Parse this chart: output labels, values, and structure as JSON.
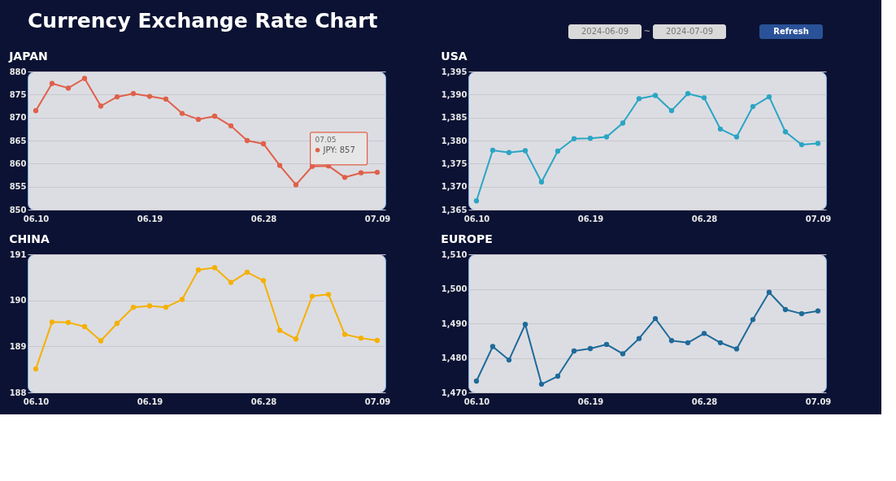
{
  "chart_data": [
    {
      "type": "other",
      "title": "Currency Exchange Rate Chart",
      "annotations": [
        "2024-06-09",
        "~",
        "2024-07-09",
        "Refresh"
      ]
    },
    {
      "type": "line",
      "title": "JAPAN",
      "categories": [
        "06.10",
        null,
        null,
        null,
        null,
        null,
        null,
        "06.19",
        null,
        null,
        null,
        null,
        null,
        null,
        "06.28",
        null,
        null,
        null,
        null,
        null,
        null,
        "07.09"
      ],
      "color": "#e0604a",
      "marker": "circle",
      "grid": "y",
      "values": [
        871.5,
        877.4,
        876.4,
        878.5,
        872.5,
        874.5,
        875.2,
        874.6,
        874.0,
        870.9,
        869.6,
        870.3,
        868.2,
        865.0,
        864.3,
        859.6,
        855.4,
        859.4,
        859.5,
        857,
        858.0,
        858.1
      ],
      "ylim": [
        850,
        880
      ],
      "yticks": [
        850,
        855,
        860,
        865,
        870,
        875,
        880
      ],
      "annotations": [
        "07.05",
        "JPY: 857"
      ]
    },
    {
      "type": "line",
      "title": "USA",
      "categories": [
        "06.10",
        null,
        null,
        null,
        null,
        null,
        null,
        "06.19",
        null,
        null,
        null,
        null,
        null,
        null,
        "06.28",
        null,
        null,
        null,
        null,
        null,
        null,
        "07.09"
      ],
      "color": "#2ba5c4",
      "marker": "circle",
      "grid": "y",
      "values": [
        1366.9,
        1377.9,
        1377.4,
        1377.8,
        1371.0,
        1377.7,
        1380.4,
        1380.5,
        1380.8,
        1383.8,
        1389.1,
        1389.8,
        1386.5,
        1390.2,
        1389.3,
        1382.5,
        1380.8,
        1387.4,
        1389.5,
        1381.9,
        1379.1,
        1379.4
      ],
      "ylim": [
        1365,
        1395
      ],
      "yticks": [
        {
          "value": 1365,
          "label": "1,365"
        },
        {
          "value": 1370,
          "label": "1,370"
        },
        {
          "value": 1375,
          "label": "1,375"
        },
        {
          "value": 1380,
          "label": "1,380"
        },
        {
          "value": 1385,
          "label": "1,385"
        },
        {
          "value": 1390,
          "label": "1,390"
        },
        {
          "value": 1395,
          "label": "1,395"
        }
      ]
    },
    {
      "type": "line",
      "title": "CHINA",
      "categories": [
        "06.10",
        null,
        null,
        null,
        null,
        null,
        null,
        "06.19",
        null,
        null,
        null,
        null,
        null,
        null,
        "06.28",
        null,
        null,
        null,
        null,
        null,
        null,
        "07.09"
      ],
      "color": "#f5b000",
      "marker": "circle",
      "grid": "y",
      "values": [
        188.51,
        189.53,
        189.52,
        189.43,
        189.12,
        189.5,
        189.85,
        189.88,
        189.85,
        190.02,
        190.66,
        190.71,
        190.39,
        190.61,
        190.43,
        189.35,
        189.16,
        190.09,
        190.13,
        189.26,
        189.18,
        189.13
      ],
      "ylim": [
        188,
        191
      ],
      "yticks": [
        188,
        189,
        190,
        191
      ]
    },
    {
      "type": "line",
      "title": "EUROPE",
      "categories": [
        "06.10",
        null,
        null,
        null,
        null,
        null,
        null,
        "06.19",
        null,
        null,
        null,
        null,
        null,
        null,
        "06.28",
        null,
        null,
        null,
        null,
        null,
        null,
        "07.09"
      ],
      "color": "#1f6a9a",
      "marker": "circle",
      "grid": "y",
      "values": [
        1473.3,
        1483.3,
        1479.4,
        1489.7,
        1472.4,
        1474.7,
        1482.0,
        1482.7,
        1483.9,
        1481.2,
        1485.6,
        1491.4,
        1485.0,
        1484.4,
        1487.1,
        1484.4,
        1482.6,
        1491.1,
        1499.0,
        1494.0,
        1492.8,
        1493.6
      ],
      "ylim": [
        1470,
        1510
      ],
      "yticks": [
        {
          "value": 1470,
          "label": "1,470"
        },
        {
          "value": 1480,
          "label": "1,480"
        },
        {
          "value": 1490,
          "label": "1,490"
        },
        {
          "value": 1500,
          "label": "1,500"
        },
        {
          "value": 1510,
          "label": "1,510"
        }
      ]
    }
  ]
}
